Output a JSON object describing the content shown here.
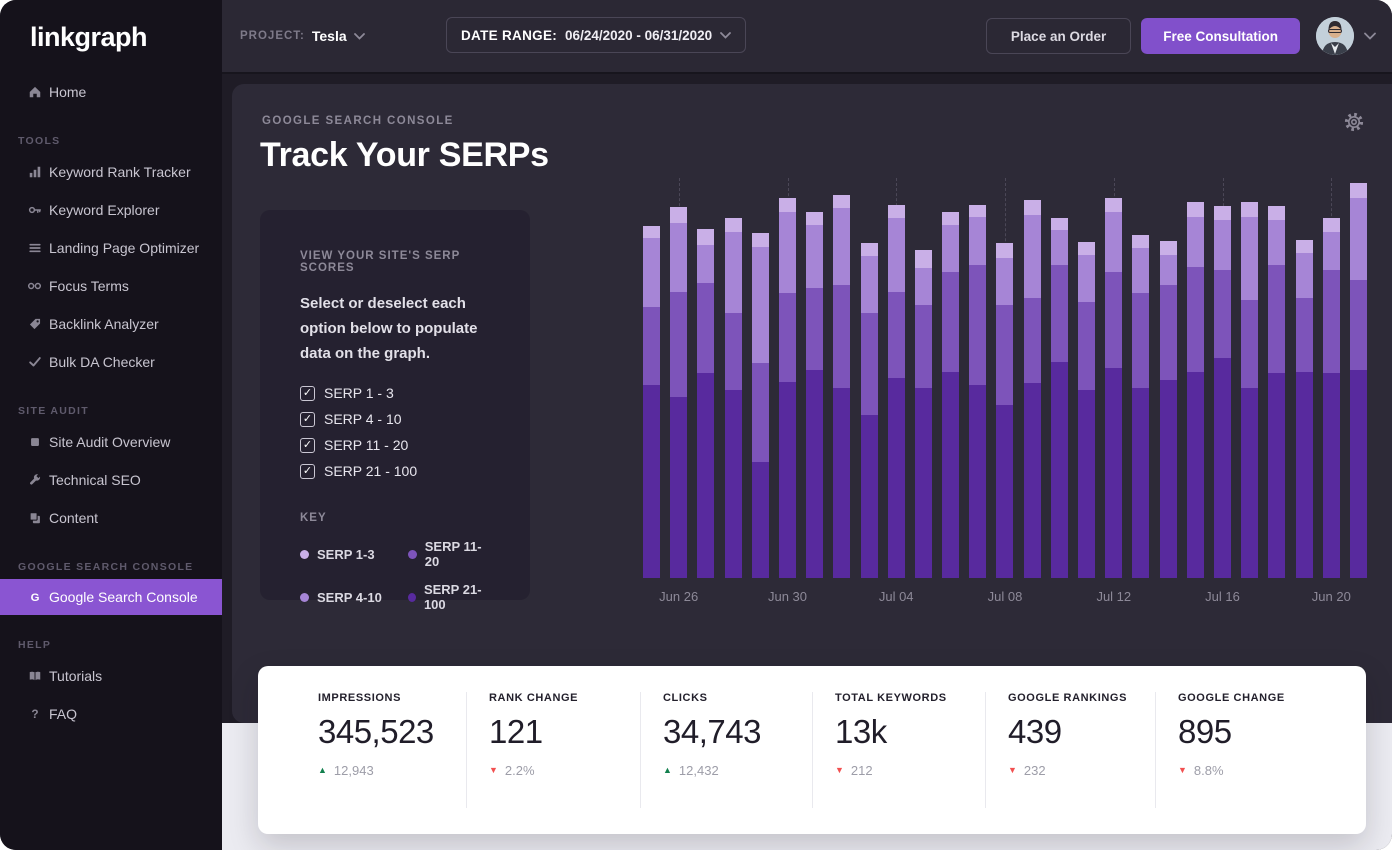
{
  "brand": "linkgraph",
  "topbar": {
    "project_label": "PROJECT:",
    "project_value": "Tesla",
    "date_range_label": "DATE RANGE:",
    "date_range_value": "06/24/2020 - 06/31/2020",
    "place_order_label": "Place an Order",
    "free_consultation_label": "Free Consultation"
  },
  "sidebar": {
    "home": {
      "label": "Home",
      "icon": "home-icon"
    },
    "sections": [
      {
        "title": "TOOLS",
        "items": [
          {
            "label": "Keyword Rank Tracker",
            "icon": "bar-chart-icon"
          },
          {
            "label": "Keyword Explorer",
            "icon": "key-icon"
          },
          {
            "label": "Landing Page Optimizer",
            "icon": "list-icon"
          },
          {
            "label": "Focus Terms",
            "icon": "glasses-icon"
          },
          {
            "label": "Backlink Analyzer",
            "icon": "tag-icon"
          },
          {
            "label": "Bulk DA Checker",
            "icon": "check-icon"
          }
        ]
      },
      {
        "title": "SITE AUDIT",
        "items": [
          {
            "label": "Site Audit Overview",
            "icon": "square-icon"
          },
          {
            "label": "Technical SEO",
            "icon": "wrench-icon"
          },
          {
            "label": "Content",
            "icon": "copy-icon"
          }
        ]
      },
      {
        "title": "GOOGLE SEARCH CONSOLE",
        "items": [
          {
            "label": "Google Search Console",
            "icon": "google-g-icon",
            "active": true
          }
        ]
      },
      {
        "title": "HELP",
        "items": [
          {
            "label": "Tutorials",
            "icon": "book-icon"
          },
          {
            "label": "FAQ",
            "icon": "question-icon"
          }
        ]
      }
    ]
  },
  "main": {
    "eyebrow": "GOOGLE SEARCH CONSOLE",
    "title": "Track Your SERPs",
    "panel": {
      "heading": "VIEW YOUR SITE'S SERP SCORES",
      "description": "Select or deselect each option below to populate data on the graph.",
      "checkboxes": [
        {
          "label": "SERP 1 - 3",
          "checked": true
        },
        {
          "label": "SERP 4 - 10",
          "checked": true
        },
        {
          "label": "SERP 11 - 20",
          "checked": true
        },
        {
          "label": "SERP 21 - 100",
          "checked": true
        }
      ],
      "key_title": "KEY",
      "key_items": [
        {
          "label": "SERP 1-3",
          "color": "#c9afe7"
        },
        {
          "label": "SERP 11-20",
          "color": "#7d54ba"
        },
        {
          "label": "SERP 4-10",
          "color": "#a685d6"
        },
        {
          "label": "SERP 21-100",
          "color": "#582a9e"
        }
      ]
    }
  },
  "chart_data": {
    "type": "bar",
    "stacked": true,
    "bar_count": 27,
    "grid": "dashed-vertical-at-labels",
    "legend_position": "left-panel",
    "x_labels": [
      "Jun 26",
      "Jun 30",
      "Jul 04",
      "Jul 08",
      "Jul 12",
      "Jul 16",
      "Jun 20"
    ],
    "label_bar_indices": [
      1,
      5,
      9,
      13,
      17,
      21,
      25
    ],
    "value_unit": "chart-pixels-of-400px-tall-plot (no numeric y-axis shown)",
    "series": [
      {
        "name": "SERP 21-100",
        "color": "#582a9e",
        "values": [
          193,
          181,
          205,
          188,
          116,
          196,
          208,
          190,
          163,
          200,
          190,
          206,
          193,
          173,
          195,
          216,
          188,
          210,
          190,
          198,
          206,
          220,
          190,
          205,
          206,
          205,
          208
        ]
      },
      {
        "name": "SERP 11-20",
        "color": "#7d54ba",
        "values": [
          78,
          105,
          90,
          77,
          99,
          89,
          82,
          103,
          102,
          86,
          83,
          100,
          120,
          100,
          85,
          97,
          88,
          96,
          95,
          95,
          105,
          88,
          88,
          108,
          74,
          103,
          90
        ]
      },
      {
        "name": "SERP 4-10",
        "color": "#a685d6",
        "values": [
          69,
          69,
          38,
          81,
          116,
          81,
          63,
          77,
          57,
          74,
          37,
          47,
          48,
          47,
          83,
          35,
          47,
          60,
          45,
          30,
          50,
          50,
          83,
          45,
          45,
          38,
          82
        ]
      },
      {
        "name": "SERP 1-3",
        "color": "#c9afe7",
        "values": [
          12,
          16,
          16,
          14,
          14,
          14,
          13,
          13,
          13,
          13,
          18,
          13,
          12,
          15,
          15,
          12,
          13,
          14,
          13,
          14,
          15,
          14,
          15,
          14,
          13,
          14,
          15
        ]
      }
    ]
  },
  "stats": [
    {
      "label": "IMPRESSIONS",
      "value": "345,523",
      "delta": "12,943",
      "direction": "up"
    },
    {
      "label": "RANK CHANGE",
      "value": "121",
      "delta": "2.2%",
      "direction": "down"
    },
    {
      "label": "CLICKS",
      "value": "34,743",
      "delta": "12,432",
      "direction": "up"
    },
    {
      "label": "TOTAL KEYWORDS",
      "value": "13k",
      "delta": "212",
      "direction": "down"
    },
    {
      "label": "GOOGLE RANKINGS",
      "value": "439",
      "delta": "232",
      "direction": "down"
    },
    {
      "label": "GOOGLE CHANGE",
      "value": "895",
      "delta": "8.8%",
      "direction": "down"
    }
  ],
  "colors": {
    "sidebar_bg": "#15121b",
    "topbar_bg": "#2b2834",
    "card_bg": "#2d2a37",
    "panel_bg": "#252130",
    "accent_purple": "#8150cb",
    "active_item_purple": "#8a55d2",
    "delta_up_green": "#13804e",
    "delta_down_red": "#f25050",
    "bottom_bg": "#ebebf1"
  }
}
